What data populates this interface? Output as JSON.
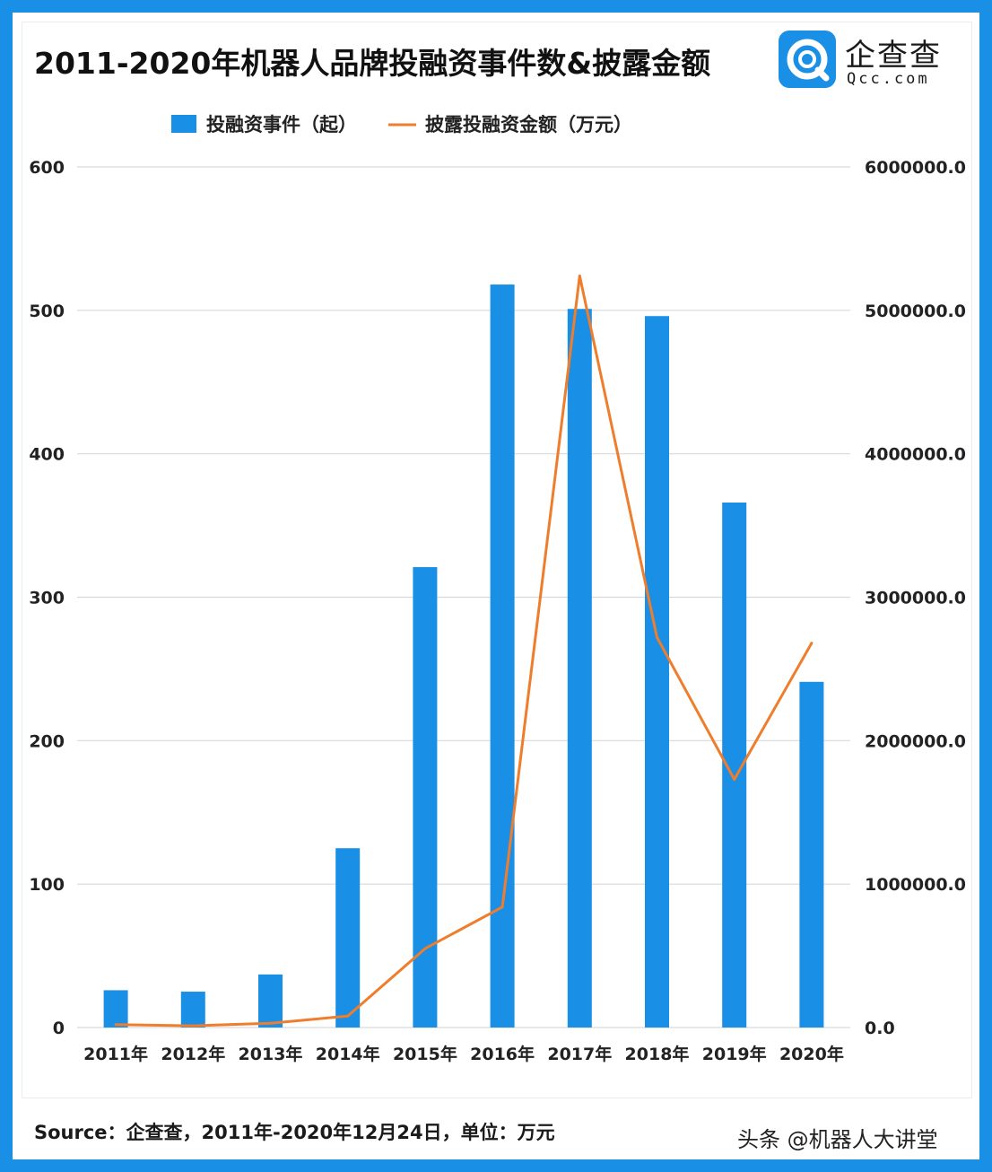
{
  "header": {
    "title": "2011-2020年机器人品牌投融资事件数&披露金额"
  },
  "logo": {
    "icon": "qcc-logo-icon",
    "name_cn": "企查查",
    "name_en": "Qcc.com",
    "color": "#1a8fe6"
  },
  "footer": {
    "source": "Source：企查查，2011年-2020年12月24日，单位：万元",
    "credit": "头条 @机器人大讲堂"
  },
  "chart_data": {
    "type": "bar",
    "title": "2011-2020年机器人品牌投融资事件数&披露金额",
    "categories": [
      "2011年",
      "2012年",
      "2013年",
      "2014年",
      "2015年",
      "2016年",
      "2017年",
      "2018年",
      "2019年",
      "2020年"
    ],
    "series": [
      {
        "name": "投融资事件（起）",
        "type": "bar",
        "axis": "left",
        "color": "#1a8fe6",
        "values": [
          26,
          25,
          37,
          125,
          321,
          518,
          501,
          496,
          366,
          241
        ]
      },
      {
        "name": "披露投融资金额（万元）",
        "type": "line",
        "axis": "right",
        "color": "#ee7d2d",
        "values": [
          20000,
          12000,
          30000,
          80000,
          550000,
          840000,
          5240000,
          2720000,
          1730000,
          2680000
        ]
      }
    ],
    "y_left": {
      "min": 0,
      "max": 600,
      "ticks": [
        "0",
        "100",
        "200",
        "300",
        "400",
        "500",
        "600"
      ]
    },
    "y_right": {
      "min": 0,
      "max": 6000000,
      "ticks": [
        "0.0",
        "1000000.0",
        "2000000.0",
        "3000000.0",
        "4000000.0",
        "5000000.0",
        "6000000.0"
      ]
    },
    "grid": true,
    "legend_position": "top"
  }
}
